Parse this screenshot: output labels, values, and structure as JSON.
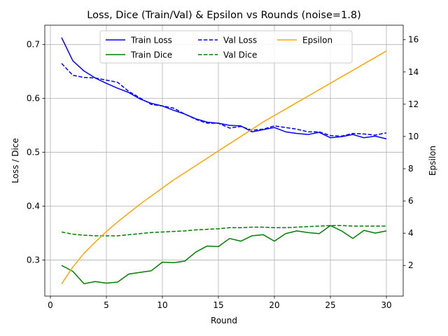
{
  "chart_data": {
    "type": "line",
    "title": "Loss, Dice (Train/Val) & Epsilon vs Rounds (noise=1.8)",
    "xlabel": "Round",
    "ylabel_left": "Loss / Dice",
    "ylabel_right": "Epsilon",
    "xlim": [
      -0.5,
      31.5
    ],
    "ylim_left": [
      0.233,
      0.736
    ],
    "ylim_right": [
      0.1,
      16.9
    ],
    "x_ticks": [
      0,
      5,
      10,
      15,
      20,
      25,
      30
    ],
    "y_ticks_left": [
      0.3,
      0.4,
      0.5,
      0.6,
      0.7
    ],
    "y_ticks_right": [
      2,
      4,
      6,
      8,
      10,
      12,
      14,
      16
    ],
    "grid": true,
    "legend_position": "top-center",
    "x": [
      1,
      2,
      3,
      4,
      5,
      6,
      7,
      8,
      9,
      10,
      11,
      12,
      13,
      14,
      15,
      16,
      17,
      18,
      19,
      20,
      21,
      22,
      23,
      24,
      25,
      26,
      27,
      28,
      29,
      30
    ],
    "series": [
      {
        "name": "Train Loss",
        "axis": "left",
        "color": "#0000ff",
        "dash": "solid",
        "values": [
          0.713,
          0.67,
          0.651,
          0.638,
          0.628,
          0.619,
          0.611,
          0.599,
          0.591,
          0.586,
          0.578,
          0.571,
          0.562,
          0.556,
          0.554,
          0.55,
          0.549,
          0.538,
          0.542,
          0.546,
          0.538,
          0.535,
          0.533,
          0.537,
          0.527,
          0.529,
          0.533,
          0.527,
          0.53,
          0.525
        ]
      },
      {
        "name": "Val Loss",
        "axis": "left",
        "color": "#0000ff",
        "dash": "dashed",
        "values": [
          0.665,
          0.643,
          0.639,
          0.638,
          0.634,
          0.63,
          0.613,
          0.601,
          0.589,
          0.586,
          0.582,
          0.571,
          0.561,
          0.554,
          0.554,
          0.545,
          0.548,
          0.541,
          0.543,
          0.549,
          0.546,
          0.543,
          0.538,
          0.538,
          0.531,
          0.53,
          0.535,
          0.534,
          0.532,
          0.536
        ]
      },
      {
        "name": "Train Dice",
        "axis": "left",
        "color": "#008000",
        "dash": "solid",
        "values": [
          0.29,
          0.279,
          0.256,
          0.26,
          0.257,
          0.259,
          0.274,
          0.277,
          0.28,
          0.296,
          0.295,
          0.298,
          0.315,
          0.326,
          0.325,
          0.34,
          0.335,
          0.345,
          0.347,
          0.335,
          0.349,
          0.354,
          0.351,
          0.349,
          0.364,
          0.354,
          0.34,
          0.355,
          0.35,
          0.354
        ]
      },
      {
        "name": "Val Dice",
        "axis": "left",
        "color": "#008000",
        "dash": "dashed",
        "values": [
          0.352,
          0.348,
          0.346,
          0.345,
          0.345,
          0.345,
          0.347,
          0.349,
          0.351,
          0.352,
          0.353,
          0.354,
          0.356,
          0.357,
          0.358,
          0.36,
          0.36,
          0.361,
          0.361,
          0.36,
          0.36,
          0.361,
          0.362,
          0.363,
          0.364,
          0.364,
          0.363,
          0.363,
          0.363,
          0.363
        ]
      },
      {
        "name": "Epsilon",
        "axis": "right",
        "color": "#ffa500",
        "dash": "solid",
        "values": [
          0.85,
          1.9,
          2.75,
          3.45,
          4.1,
          4.7,
          5.25,
          5.8,
          6.3,
          6.8,
          7.3,
          7.75,
          8.2,
          8.65,
          9.1,
          9.55,
          10.0,
          10.45,
          10.9,
          11.3,
          11.7,
          12.1,
          12.5,
          12.9,
          13.3,
          13.7,
          14.1,
          14.5,
          14.9,
          15.3
        ]
      }
    ]
  }
}
